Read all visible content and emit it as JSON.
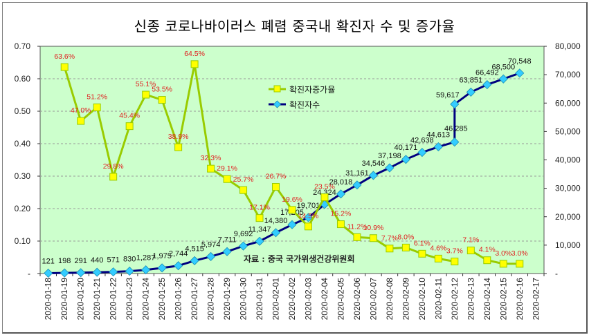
{
  "title": "신종 코로나바이러스 폐렴 중국내 확진자 수 및 증가율",
  "chart_data": {
    "type": "line",
    "title": "신종 코로나바이러스 폐렴 중국내 확진자 수 및 증가율",
    "categories": [
      "2020-01-18",
      "2020-01-19",
      "2020-01-20",
      "2020-01-21",
      "2020-01-22",
      "2020-01-23",
      "2020-01-24",
      "2020-01-25",
      "2020-01-26",
      "2020-01-27",
      "2020-01-28",
      "2020-01-29",
      "2020-01-30",
      "2020-01-31",
      "2020-02-01",
      "2020-02-02",
      "2020-02-03",
      "2020-02-04",
      "2020-02-05",
      "2020-02-06",
      "2020-02-07",
      "2020-02-08",
      "2020-02-09",
      "2020-02-10",
      "2020-02-11",
      "2020-02-12",
      "2020-02-13",
      "2020-02-14",
      "2020-02-15",
      "2020-02-16",
      "2020-02-17"
    ],
    "y_left": {
      "ylim": [
        0,
        0.7
      ],
      "ticks": [
        "-",
        "0.10",
        "0.20",
        "0.30",
        "0.40",
        "0.50",
        "0.60",
        "0.70"
      ],
      "tick_values": [
        0,
        0.1,
        0.2,
        0.3,
        0.4,
        0.5,
        0.6,
        0.7
      ]
    },
    "y_right": {
      "ylim": [
        0,
        80000
      ],
      "ticks": [
        "-",
        "10,000",
        "20,000",
        "30,000",
        "40,000",
        "50,000",
        "60,000",
        "70,000",
        "80,000"
      ],
      "tick_values": [
        0,
        10000,
        20000,
        30000,
        40000,
        50000,
        60000,
        70000,
        80000
      ]
    },
    "grid": "horizontal dashed",
    "legend_position": "upper-center-right",
    "series": [
      {
        "name": "확진자증가율",
        "axis": "left",
        "color": "#99cc00",
        "marker": "square",
        "marker_color": "#ffff00",
        "segments": [
          {
            "points": [
              {
                "cat": 1,
                "value": 0.636,
                "label": "63.6%"
              },
              {
                "cat": 2,
                "value": 0.47,
                "label": "47.0%"
              },
              {
                "cat": 3,
                "value": 0.512,
                "label": "51.2%"
              },
              {
                "cat": 4,
                "value": 0.298,
                "label": "29.8%"
              },
              {
                "cat": 5,
                "value": 0.454,
                "label": "45.4%"
              },
              {
                "cat": 6,
                "value": 0.551,
                "label": "55.1%"
              },
              {
                "cat": 7,
                "value": 0.535,
                "label": "53.5%"
              },
              {
                "cat": 8,
                "value": 0.389,
                "label": "38.9%"
              },
              {
                "cat": 9,
                "value": 0.645,
                "label": "64.5%"
              },
              {
                "cat": 10,
                "value": 0.323,
                "label": "32.3%"
              },
              {
                "cat": 11,
                "value": 0.291,
                "label": "29.1%"
              },
              {
                "cat": 12,
                "value": 0.257,
                "label": "25.7%"
              },
              {
                "cat": 13,
                "value": 0.171,
                "label": "17.1%"
              },
              {
                "cat": 14,
                "value": 0.267,
                "label": "26.7%"
              },
              {
                "cat": 15,
                "value": 0.196,
                "label": "19.6%"
              },
              {
                "cat": 16,
                "value": 0.145,
                "label": "14.5%"
              },
              {
                "cat": 17,
                "value": 0.235,
                "label": "23.5%"
              },
              {
                "cat": 18,
                "value": 0.152,
                "label": "15.2%"
              },
              {
                "cat": 19,
                "value": 0.112,
                "label": "11.2%"
              },
              {
                "cat": 20,
                "value": 0.109,
                "label": "10.9%"
              },
              {
                "cat": 21,
                "value": 0.077,
                "label": "7.7%"
              },
              {
                "cat": 22,
                "value": 0.08,
                "label": "8.0%"
              },
              {
                "cat": 23,
                "value": 0.061,
                "label": "6.1%"
              },
              {
                "cat": 24,
                "value": 0.046,
                "label": "4.6%"
              },
              {
                "cat": 25,
                "value": 0.037,
                "label": "3.7%"
              }
            ]
          },
          {
            "points": [
              {
                "cat": 26,
                "value": 0.071,
                "label": "7.1%"
              },
              {
                "cat": 27,
                "value": 0.041,
                "label": "4.1%"
              },
              {
                "cat": 28,
                "value": 0.03,
                "label": "3.0%"
              },
              {
                "cat": 29,
                "value": 0.03,
                "label": "3.0%"
              }
            ]
          }
        ]
      },
      {
        "name": "확진자수",
        "axis": "right",
        "color": "#000080",
        "marker": "diamond",
        "marker_color": "#33ccff",
        "points": [
          {
            "cat": 0,
            "value": 121,
            "label": "121"
          },
          {
            "cat": 1,
            "value": 198,
            "label": "198"
          },
          {
            "cat": 2,
            "value": 291,
            "label": "291"
          },
          {
            "cat": 3,
            "value": 440,
            "label": "440"
          },
          {
            "cat": 4,
            "value": 571,
            "label": "571"
          },
          {
            "cat": 5,
            "value": 830,
            "label": "830"
          },
          {
            "cat": 6,
            "value": 1287,
            "label": "1,287"
          },
          {
            "cat": 7,
            "value": 1975,
            "label": "1,975"
          },
          {
            "cat": 8,
            "value": 2744,
            "label": "2,744"
          },
          {
            "cat": 9,
            "value": 4515,
            "label": "4,515"
          },
          {
            "cat": 10,
            "value": 5974,
            "label": "5,974"
          },
          {
            "cat": 11,
            "value": 7711,
            "label": "7,711"
          },
          {
            "cat": 12,
            "value": 9692,
            "label": "9,692"
          },
          {
            "cat": 13,
            "value": 11347,
            "label": "11,347"
          },
          {
            "cat": 14,
            "value": 14380,
            "label": "14,380"
          },
          {
            "cat": 15,
            "value": 17205,
            "label": "17,205"
          },
          {
            "cat": 16,
            "value": 19701,
            "label": "19,701"
          },
          {
            "cat": 17,
            "value": 24324,
            "label": "24,324"
          },
          {
            "cat": 18,
            "value": 28018,
            "label": "28,018"
          },
          {
            "cat": 19,
            "value": 31161,
            "label": "31,161"
          },
          {
            "cat": 20,
            "value": 34546,
            "label": "34,546"
          },
          {
            "cat": 21,
            "value": 37198,
            "label": "37,198"
          },
          {
            "cat": 22,
            "value": 40171,
            "label": "40,171"
          },
          {
            "cat": 23,
            "value": 42638,
            "label": "42,638"
          },
          {
            "cat": 24,
            "value": 44613,
            "label": "44,613"
          },
          {
            "cat": 25,
            "value": 46285,
            "label": "46,285"
          },
          {
            "cat": 25,
            "value": 59617,
            "label": "59,617"
          },
          {
            "cat": 26,
            "value": 63851,
            "label": "63,851"
          },
          {
            "cat": 27,
            "value": 66492,
            "label": "66,492"
          },
          {
            "cat": 28,
            "value": 68500,
            "label": "68,500"
          },
          {
            "cat": 29,
            "value": 70548,
            "label": "70,548"
          }
        ]
      }
    ],
    "annotations": [
      "자료 : 중국 국가위생건강위원회"
    ]
  },
  "legend": {
    "items": [
      {
        "label": "확진자증가율"
      },
      {
        "label": "확진자수"
      }
    ]
  },
  "source_note": "자료 : 중국 국가위생건강위원회",
  "colors": {
    "plot_bg": "#ccffcc",
    "rate_line": "#99cc00",
    "rate_marker": "#ffff00",
    "count_line": "#000080",
    "count_marker": "#33ccff",
    "rate_label": "#e02020"
  }
}
